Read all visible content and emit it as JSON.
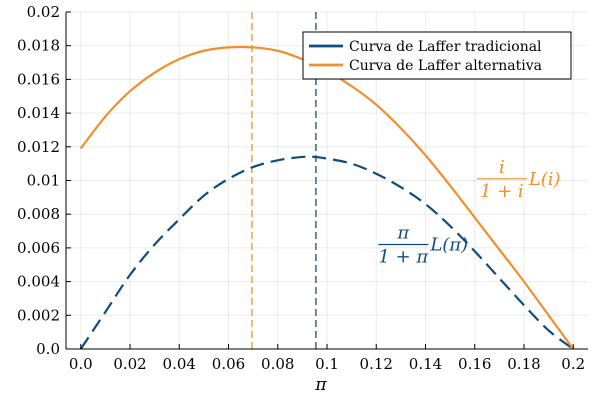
{
  "chart_data": {
    "type": "line",
    "title": "",
    "xlabel": "π",
    "ylabel": "",
    "xlim": [
      -0.006,
      0.206
    ],
    "ylim": [
      0,
      0.02
    ],
    "grid": true,
    "legend_placement": "top-right",
    "x_ticks": [
      0.0,
      0.02,
      0.04,
      0.06,
      0.08,
      0.1,
      0.12,
      0.14,
      0.16,
      0.18,
      0.2
    ],
    "x_tick_labels": [
      "0.0",
      "0.02",
      "0.04",
      "0.06",
      "0.08",
      "0.1",
      "0.12",
      "0.14",
      "0.16",
      "0.18",
      "0.2"
    ],
    "y_ticks": [
      0,
      0.002,
      0.004,
      0.006,
      0.008,
      0.01,
      0.012,
      0.014,
      0.016,
      0.018,
      0.02
    ],
    "y_tick_labels": [
      "0.0",
      "0.002",
      "0.004",
      "0.006",
      "0.008",
      "0.01",
      "0.012",
      "0.014",
      "0.016",
      "0.018",
      "0.02"
    ],
    "series": [
      {
        "name": "Curva de Laffer tradicional",
        "color": "#0f4c81",
        "style": "dashed",
        "x": [
          0.0,
          0.01,
          0.02,
          0.03,
          0.04,
          0.05,
          0.06,
          0.07,
          0.08,
          0.09,
          0.095,
          0.1,
          0.11,
          0.12,
          0.13,
          0.14,
          0.15,
          0.16,
          0.17,
          0.18,
          0.19,
          0.2
        ],
        "y": [
          0.0,
          0.0022,
          0.0044,
          0.0062,
          0.0077,
          0.0091,
          0.0101,
          0.0108,
          0.0112,
          0.0114,
          0.0114,
          0.0113,
          0.011,
          0.0104,
          0.0096,
          0.0086,
          0.0073,
          0.0058,
          0.0042,
          0.0026,
          0.0011,
          0.0
        ]
      },
      {
        "name": "Curva de Laffer alternativa",
        "color": "#f28e2b",
        "style": "solid",
        "x": [
          0.0,
          0.01,
          0.02,
          0.03,
          0.04,
          0.05,
          0.06,
          0.07,
          0.08,
          0.09,
          0.1,
          0.11,
          0.12,
          0.13,
          0.14,
          0.15,
          0.16,
          0.17,
          0.18,
          0.19,
          0.2
        ],
        "y": [
          0.0119,
          0.0138,
          0.0153,
          0.0164,
          0.0172,
          0.0177,
          0.0179,
          0.0179,
          0.0177,
          0.0172,
          0.0165,
          0.0156,
          0.0145,
          0.0131,
          0.0115,
          0.0097,
          0.0078,
          0.0059,
          0.004,
          0.002,
          0.0
        ]
      }
    ],
    "vlines": [
      {
        "x": 0.0695,
        "color": "#f28e2b",
        "style": "dashed"
      },
      {
        "x": 0.0955,
        "color": "#0f4c81",
        "style": "dashed"
      }
    ],
    "annotations": [
      {
        "series": "Curva de Laffer alternativa",
        "numerator": "i",
        "denominator": "1 + i",
        "suffix": "L(i)",
        "color": "#f28e2b",
        "x": 0.171,
        "y": 0.0101
      },
      {
        "series": "Curva de Laffer tradicional",
        "numerator": "π",
        "denominator": "1 + π",
        "suffix": "L(π)",
        "color": "#0f4c81",
        "x": 0.131,
        "y": 0.0062
      }
    ]
  }
}
